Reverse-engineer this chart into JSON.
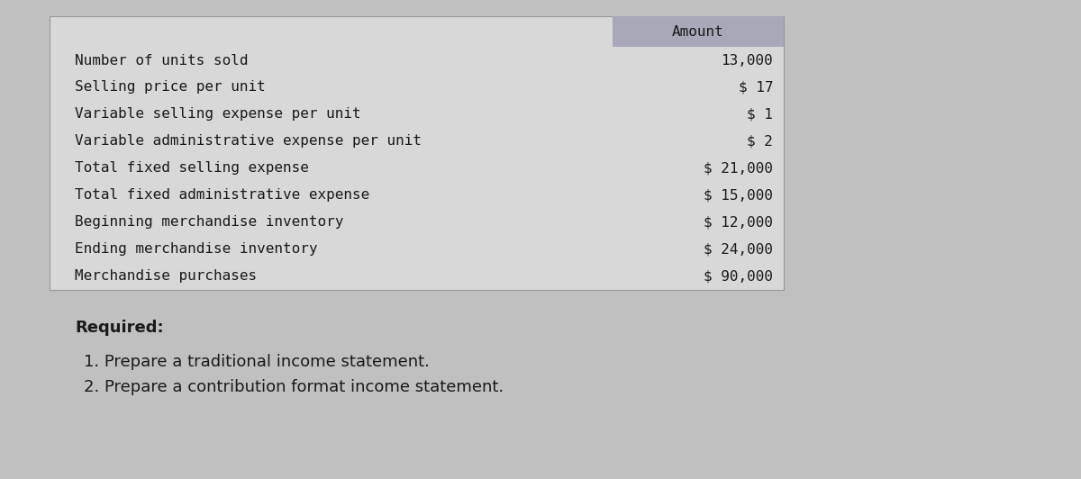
{
  "bg_color": "#c0c0c0",
  "table_bg": "#d8d8d8",
  "header_bg": "#a8a8b0",
  "header_text": "Amount",
  "rows": [
    {
      "label": "Number of units sold",
      "value": "13,000"
    },
    {
      "label": "Selling price per unit",
      "value": "$ 17"
    },
    {
      "label": "Variable selling expense per unit",
      "value": "$ 1"
    },
    {
      "label": "Variable administrative expense per unit",
      "value": "$ 2"
    },
    {
      "label": "Total fixed selling expense",
      "value": "$ 21,000"
    },
    {
      "label": "Total fixed administrative expense",
      "value": "$ 15,000"
    },
    {
      "label": "Beginning merchandise inventory",
      "value": "$ 12,000"
    },
    {
      "label": "Ending merchandise inventory",
      "value": "$ 24,000"
    },
    {
      "label": "Merchandise purchases",
      "value": "$ 90,000"
    }
  ],
  "required_label": "Required:",
  "required_items": [
    "1. Prepare a traditional income statement.",
    "2. Prepare a contribution format income statement."
  ],
  "monospace_font": "DejaVu Sans Mono",
  "sans_font": "DejaVu Sans",
  "header_fontsize": 11.5,
  "data_fontsize": 11.5,
  "required_fontsize": 13,
  "items_fontsize": 13
}
